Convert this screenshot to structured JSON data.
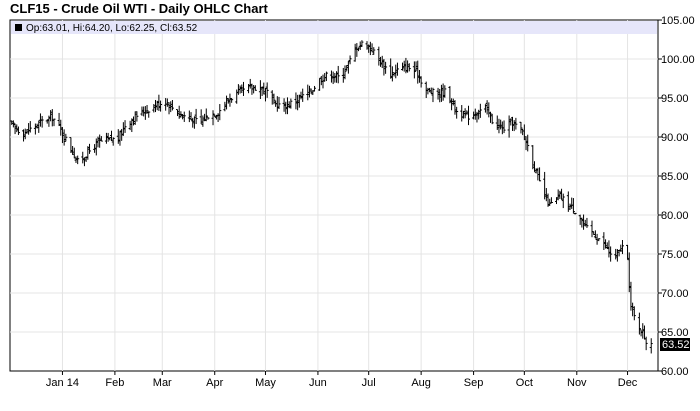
{
  "chart_data": {
    "type": "ohlc",
    "title": "CLF15 - Crude Oil WTI - Daily OHLC Chart",
    "legend": {
      "text": "Op:63.01, Hi:64.20, Lo:62.25, Cl:63.52",
      "placement": "top-left"
    },
    "last_price_label": "63.52",
    "ylim": [
      60,
      105
    ],
    "y_ticks": [
      "60.00",
      "65.00",
      "70.00",
      "75.00",
      "80.00",
      "85.00",
      "90.00",
      "95.00",
      "100.00",
      "105.00"
    ],
    "x_range": [
      "2013-12-01",
      "2014-12-19"
    ],
    "x_ticks": [
      {
        "date": "2014-01-01",
        "label": "Jan 14"
      },
      {
        "date": "2014-02-01",
        "label": "Feb"
      },
      {
        "date": "2014-03-01",
        "label": "Mar"
      },
      {
        "date": "2014-04-01",
        "label": "Apr"
      },
      {
        "date": "2014-05-01",
        "label": "May"
      },
      {
        "date": "2014-06-01",
        "label": "Jun"
      },
      {
        "date": "2014-07-01",
        "label": "Jul"
      },
      {
        "date": "2014-08-01",
        "label": "Aug"
      },
      {
        "date": "2014-09-01",
        "label": "Sep"
      },
      {
        "date": "2014-10-01",
        "label": "Oct"
      },
      {
        "date": "2014-11-01",
        "label": "Nov"
      },
      {
        "date": "2014-12-01",
        "label": "Dec"
      }
    ],
    "grid": true,
    "price_path": [
      [
        "2013-12-01",
        91.8
      ],
      [
        "2013-12-05",
        91.0
      ],
      [
        "2013-12-10",
        90.6
      ],
      [
        "2013-12-15",
        91.3
      ],
      [
        "2013-12-20",
        92.0
      ],
      [
        "2013-12-26",
        92.6
      ],
      [
        "2014-01-01",
        90.5
      ],
      [
        "2014-01-06",
        88.5
      ],
      [
        "2014-01-10",
        86.8
      ],
      [
        "2014-01-16",
        88.0
      ],
      [
        "2014-01-22",
        89.3
      ],
      [
        "2014-01-28",
        89.6
      ],
      [
        "2014-02-03",
        89.8
      ],
      [
        "2014-02-07",
        91.5
      ],
      [
        "2014-02-14",
        92.8
      ],
      [
        "2014-02-20",
        93.5
      ],
      [
        "2014-02-26",
        94.2
      ],
      [
        "2014-03-03",
        94.6
      ],
      [
        "2014-03-07",
        93.8
      ],
      [
        "2014-03-12",
        92.9
      ],
      [
        "2014-03-18",
        92.3
      ],
      [
        "2014-03-24",
        91.9
      ],
      [
        "2014-03-28",
        92.8
      ],
      [
        "2014-04-03",
        93.2
      ],
      [
        "2014-04-09",
        94.8
      ],
      [
        "2014-04-15",
        95.7
      ],
      [
        "2014-04-21",
        96.2
      ],
      [
        "2014-04-27",
        96.5
      ],
      [
        "2014-05-02",
        95.8
      ],
      [
        "2014-05-06",
        94.3
      ],
      [
        "2014-05-12",
        93.9
      ],
      [
        "2014-05-18",
        94.6
      ],
      [
        "2014-05-24",
        95.3
      ],
      [
        "2014-05-28",
        95.9
      ],
      [
        "2014-06-02",
        97.4
      ],
      [
        "2014-06-08",
        98.1
      ],
      [
        "2014-06-14",
        97.6
      ],
      [
        "2014-06-20",
        99.8
      ],
      [
        "2014-06-24",
        101.6
      ],
      [
        "2014-06-28",
        102.1
      ],
      [
        "2014-07-02",
        101.5
      ],
      [
        "2014-07-08",
        99.7
      ],
      [
        "2014-07-14",
        98.1
      ],
      [
        "2014-07-18",
        98.6
      ],
      [
        "2014-07-24",
        99.0
      ],
      [
        "2014-07-30",
        98.2
      ],
      [
        "2014-08-04",
        96.0
      ],
      [
        "2014-08-10",
        95.5
      ],
      [
        "2014-08-16",
        95.9
      ],
      [
        "2014-08-22",
        93.3
      ],
      [
        "2014-08-28",
        92.6
      ],
      [
        "2014-09-03",
        93.2
      ],
      [
        "2014-09-08",
        93.8
      ],
      [
        "2014-09-12",
        92.1
      ],
      [
        "2014-09-18",
        91.0
      ],
      [
        "2014-09-24",
        91.9
      ],
      [
        "2014-09-30",
        90.6
      ],
      [
        "2014-10-04",
        88.3
      ],
      [
        "2014-10-08",
        85.4
      ],
      [
        "2014-10-12",
        82.9
      ],
      [
        "2014-10-16",
        81.2
      ],
      [
        "2014-10-22",
        82.4
      ],
      [
        "2014-10-28",
        81.2
      ],
      [
        "2014-11-02",
        80.2
      ],
      [
        "2014-11-06",
        78.4
      ],
      [
        "2014-11-12",
        77.4
      ],
      [
        "2014-11-16",
        76.6
      ],
      [
        "2014-11-20",
        75.2
      ],
      [
        "2014-11-24",
        74.6
      ],
      [
        "2014-11-28",
        75.9
      ],
      [
        "2014-12-01",
        74.0
      ],
      [
        "2014-12-03",
        68.2
      ],
      [
        "2014-12-06",
        66.3
      ],
      [
        "2014-12-09",
        65.4
      ],
      [
        "2014-12-12",
        63.8
      ],
      [
        "2014-12-15",
        63.52
      ]
    ]
  }
}
